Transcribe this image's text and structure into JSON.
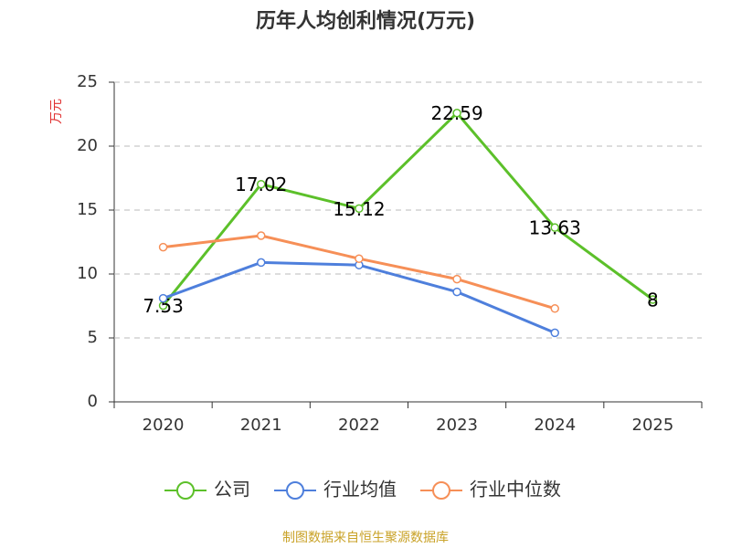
{
  "chart_data": {
    "type": "line",
    "title": "历年人均创利情况(万元)",
    "y_label": "万元",
    "categories": [
      "2020",
      "2021",
      "2022",
      "2023",
      "2024",
      "2025"
    ],
    "series": [
      {
        "name": "公司",
        "color": "#5cc02a",
        "values": [
          7.53,
          17.02,
          15.12,
          22.59,
          13.63,
          8
        ]
      },
      {
        "name": "行业均值",
        "color": "#4e7fdc",
        "values": [
          8.1,
          10.9,
          10.7,
          8.6,
          5.4,
          null
        ]
      },
      {
        "name": "行业中位数",
        "color": "#f68f57",
        "values": [
          12.1,
          13.0,
          11.2,
          9.6,
          7.3,
          null
        ]
      }
    ],
    "ylim": [
      0,
      25
    ],
    "yticks": [
      0,
      5,
      10,
      15,
      20,
      25
    ],
    "grid": true,
    "source": "制图数据来自恒生聚源数据库"
  }
}
